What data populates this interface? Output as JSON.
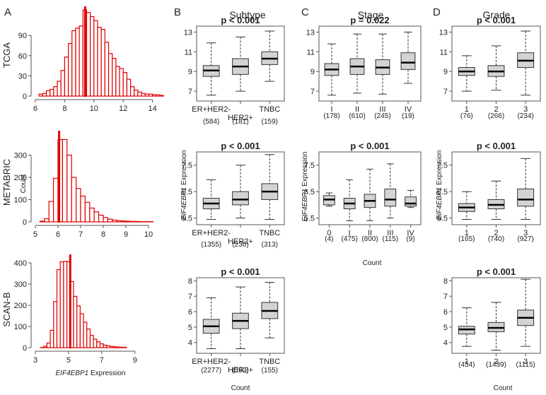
{
  "figure": {
    "panel_labels": [
      "A",
      "B",
      "C",
      "D"
    ],
    "column_titles": {
      "subtype": "Subtype",
      "stage": "Stage",
      "grade": "Grade"
    },
    "row_labels": [
      "TCGA",
      "METABRIC",
      "SCAN-B"
    ],
    "y_axis_count_label": "Count",
    "expression_gene": "EIF4EBP1",
    "expression_word": " Expression",
    "x_axis_count_label": "Count"
  },
  "colors": {
    "red": "#e00000",
    "box_fill": "#d3d3d3",
    "axis": "#555555"
  },
  "chart_data": [
    {
      "id": "hist_tcga",
      "type": "histogram",
      "row_label": "TCGA",
      "xlim": [
        6,
        14.5
      ],
      "ylim": [
        0,
        130
      ],
      "xticks": [
        "6",
        "8",
        "10",
        "12",
        "14"
      ],
      "yticks": [
        "0",
        "30",
        "60",
        "90"
      ],
      "bin_start": 6.25,
      "bin_width": 0.25,
      "counts": [
        3,
        4,
        8,
        10,
        14,
        22,
        38,
        58,
        78,
        97,
        101,
        104,
        128,
        124,
        118,
        112,
        102,
        99,
        80,
        63,
        56,
        44,
        41,
        35,
        25,
        14,
        9,
        6,
        4,
        3,
        3,
        2,
        2,
        1
      ],
      "median_line": 9.4
    },
    {
      "id": "hist_metabric",
      "type": "histogram",
      "row_label": "METABRIC",
      "xlim": [
        5,
        10.5
      ],
      "ylim": [
        0,
        400
      ],
      "xticks": [
        "5",
        "6",
        "7",
        "8",
        "9",
        "10"
      ],
      "yticks": [
        "0",
        "100",
        "200",
        "300"
      ],
      "bin_start": 5.2,
      "bin_width": 0.2,
      "counts": [
        3,
        14,
        92,
        196,
        370,
        370,
        300,
        200,
        150,
        116,
        88,
        62,
        45,
        30,
        20,
        12,
        8,
        5,
        4,
        3,
        2,
        2,
        1,
        1,
        1
      ],
      "median_line": 6.05
    },
    {
      "id": "hist_scanb",
      "type": "histogram",
      "row_label": "SCAN-B",
      "xlim": [
        3,
        10.5
      ],
      "ylim": [
        0,
        430
      ],
      "xticks": [
        "3",
        "5",
        "7",
        "9"
      ],
      "yticks": [
        "0",
        "100",
        "200",
        "300",
        "400"
      ],
      "bin_start": 3.3,
      "bin_width": 0.2,
      "counts": [
        1,
        6,
        22,
        82,
        217,
        368,
        405,
        407,
        405,
        312,
        242,
        197,
        160,
        120,
        88,
        58,
        40,
        28,
        18,
        12,
        9,
        6,
        4,
        3,
        2,
        2
      ],
      "median_line": 5.1
    },
    {
      "id": "box_subtype_tcga",
      "type": "boxplot",
      "title": "Subtype",
      "p_value": "p < 0.001",
      "ylim": [
        6,
        13.6
      ],
      "yticks": [
        "7",
        "9",
        "11",
        "13"
      ],
      "categories": [
        "ER+HER2-",
        "HER2+",
        "TNBC"
      ],
      "n_labels": [
        "(584)",
        "(181)",
        "(159)"
      ],
      "stagger": true,
      "series": [
        {
          "name": "ER+HER2-",
          "whisker_low": 6.6,
          "q1": 8.5,
          "median": 9.1,
          "q3": 9.6,
          "whisker_high": 11.9
        },
        {
          "name": "HER2+",
          "whisker_low": 7.0,
          "q1": 8.7,
          "median": 9.5,
          "q3": 10.3,
          "whisker_high": 12.5
        },
        {
          "name": "TNBC",
          "whisker_low": 8.0,
          "q1": 9.7,
          "median": 10.3,
          "q3": 11.0,
          "whisker_high": 13.1
        }
      ]
    },
    {
      "id": "box_stage_tcga",
      "type": "boxplot",
      "title": "Stage",
      "p_value": "p = 0.022",
      "ylim": [
        6,
        13.6
      ],
      "yticks": [
        "7",
        "9",
        "11",
        "13"
      ],
      "categories": [
        "I",
        "II",
        "III",
        "IV"
      ],
      "n_labels": [
        "(178)",
        "(610)",
        "(245)",
        "(19)"
      ],
      "stagger": false,
      "series": [
        {
          "name": "I",
          "whisker_low": 6.6,
          "q1": 8.6,
          "median": 9.2,
          "q3": 9.8,
          "whisker_high": 11.8
        },
        {
          "name": "II",
          "whisker_low": 6.8,
          "q1": 8.7,
          "median": 9.5,
          "q3": 10.3,
          "whisker_high": 12.8
        },
        {
          "name": "III",
          "whisker_low": 6.7,
          "q1": 8.7,
          "median": 9.4,
          "q3": 10.2,
          "whisker_high": 12.8
        },
        {
          "name": "IV",
          "whisker_low": 7.8,
          "q1": 9.2,
          "median": 9.9,
          "q3": 10.9,
          "whisker_high": 13.0
        }
      ]
    },
    {
      "id": "box_grade_tcga",
      "type": "boxplot",
      "title": "Grade",
      "p_value": "p  < 0.001",
      "ylim": [
        6,
        13.6
      ],
      "yticks": [
        "7",
        "9",
        "11",
        "13"
      ],
      "categories": [
        "1",
        "2",
        "3"
      ],
      "n_labels": [
        "(76)",
        "(266)",
        "(234)"
      ],
      "stagger": false,
      "series": [
        {
          "name": "1",
          "whisker_low": 7.0,
          "q1": 8.6,
          "median": 9.0,
          "q3": 9.4,
          "whisker_high": 10.6
        },
        {
          "name": "2",
          "whisker_low": 7.1,
          "q1": 8.5,
          "median": 9.0,
          "q3": 9.6,
          "whisker_high": 11.6
        },
        {
          "name": "3",
          "whisker_low": 6.6,
          "q1": 9.4,
          "median": 10.1,
          "q3": 10.9,
          "whisker_high": 13.1
        }
      ]
    },
    {
      "id": "box_subtype_metabric",
      "type": "boxplot",
      "p_value": "p < 0.001",
      "ylim": [
        5.25,
        8.0
      ],
      "yticks": [
        "5.5",
        "6.5",
        "7.5"
      ],
      "categories": [
        "ER+HER2-",
        "HER2+",
        "TNBC"
      ],
      "n_labels": [
        "(1355)",
        "(236)",
        "(313)"
      ],
      "stagger": true,
      "series": [
        {
          "name": "ER+HER2-",
          "whisker_low": 5.45,
          "q1": 5.85,
          "median": 6.05,
          "q3": 6.25,
          "whisker_high": 6.95
        },
        {
          "name": "HER2+",
          "whisker_low": 5.5,
          "q1": 6.0,
          "median": 6.2,
          "q3": 6.5,
          "whisker_high": 7.5
        },
        {
          "name": "TNBC",
          "whisker_low": 5.45,
          "q1": 6.2,
          "median": 6.5,
          "q3": 6.8,
          "whisker_high": 7.9
        }
      ]
    },
    {
      "id": "box_stage_metabric",
      "type": "boxplot",
      "p_value": "p < 0.001",
      "ylim": [
        5.25,
        8.0
      ],
      "yticks": [
        "5.5",
        "6.5",
        "7.5"
      ],
      "categories": [
        "0",
        "I",
        "II",
        "III",
        "IV"
      ],
      "n_labels": [
        "(4)",
        "(475)",
        "(800)",
        "(115)",
        "(9)"
      ],
      "stagger": false,
      "series": [
        {
          "name": "0",
          "whisker_low": 5.95,
          "q1": 6.0,
          "median": 6.2,
          "q3": 6.35,
          "whisker_high": 6.45
        },
        {
          "name": "I",
          "whisker_low": 5.4,
          "q1": 5.85,
          "median": 6.05,
          "q3": 6.25,
          "whisker_high": 6.95
        },
        {
          "name": "II",
          "whisker_low": 5.4,
          "q1": 5.9,
          "median": 6.15,
          "q3": 6.4,
          "whisker_high": 7.35
        },
        {
          "name": "III",
          "whisker_low": 5.5,
          "q1": 5.95,
          "median": 6.2,
          "q3": 6.6,
          "whisker_high": 7.55
        },
        {
          "name": "IV",
          "whisker_low": 5.9,
          "q1": 5.95,
          "median": 6.05,
          "q3": 6.3,
          "whisker_high": 6.55
        }
      ]
    },
    {
      "id": "box_grade_metabric",
      "type": "boxplot",
      "p_value": "p  < 0.001",
      "ylim": [
        5.25,
        8.0
      ],
      "yticks": [
        "5.5",
        "6.5",
        "7.5"
      ],
      "categories": [
        "1",
        "2",
        "3"
      ],
      "n_labels": [
        "(165)",
        "(740)",
        "(927)"
      ],
      "stagger": false,
      "series": [
        {
          "name": "1",
          "whisker_low": 5.45,
          "q1": 5.75,
          "median": 5.9,
          "q3": 6.05,
          "whisker_high": 6.5
        },
        {
          "name": "2",
          "whisker_low": 5.45,
          "q1": 5.85,
          "median": 6.0,
          "q3": 6.2,
          "whisker_high": 6.9
        },
        {
          "name": "3",
          "whisker_low": 5.45,
          "q1": 5.95,
          "median": 6.2,
          "q3": 6.6,
          "whisker_high": 7.75
        }
      ]
    },
    {
      "id": "box_subtype_scanb",
      "type": "boxplot",
      "p_value": "p < 0.001",
      "ylim": [
        3.3,
        8.2
      ],
      "yticks": [
        "4",
        "5",
        "6",
        "7",
        "8"
      ],
      "categories": [
        "ER+HER2-",
        "HER2+",
        "TNBC"
      ],
      "n_labels": [
        "(2277)",
        "(392)",
        "(155)"
      ],
      "stagger": true,
      "series": [
        {
          "name": "ER+HER2-",
          "whisker_low": 3.6,
          "q1": 4.6,
          "median": 5.05,
          "q3": 5.5,
          "whisker_high": 6.9
        },
        {
          "name": "HER2+",
          "whisker_low": 3.6,
          "q1": 4.9,
          "median": 5.4,
          "q3": 5.9,
          "whisker_high": 7.6
        },
        {
          "name": "TNBC",
          "whisker_low": 4.3,
          "q1": 5.55,
          "median": 6.05,
          "q3": 6.6,
          "whisker_high": 7.9
        }
      ]
    },
    {
      "id": "box_grade_scanb",
      "type": "boxplot",
      "p_value": "p  < 0.001",
      "ylim": [
        3.3,
        8.2
      ],
      "yticks": [
        "4",
        "5",
        "6",
        "7",
        "8"
      ],
      "categories": [
        "1",
        "2",
        "3"
      ],
      "n_labels": [
        "(454)",
        "(1439)",
        "(1115)"
      ],
      "stagger": false,
      "series": [
        {
          "name": "1",
          "whisker_low": 3.75,
          "q1": 4.55,
          "median": 4.85,
          "q3": 5.05,
          "whisker_high": 6.25
        },
        {
          "name": "2",
          "whisker_low": 3.5,
          "q1": 4.7,
          "median": 4.95,
          "q3": 5.3,
          "whisker_high": 6.6
        },
        {
          "name": "3",
          "whisker_low": 3.75,
          "q1": 5.1,
          "median": 5.6,
          "q3": 6.1,
          "whisker_high": 8.1
        }
      ]
    }
  ]
}
